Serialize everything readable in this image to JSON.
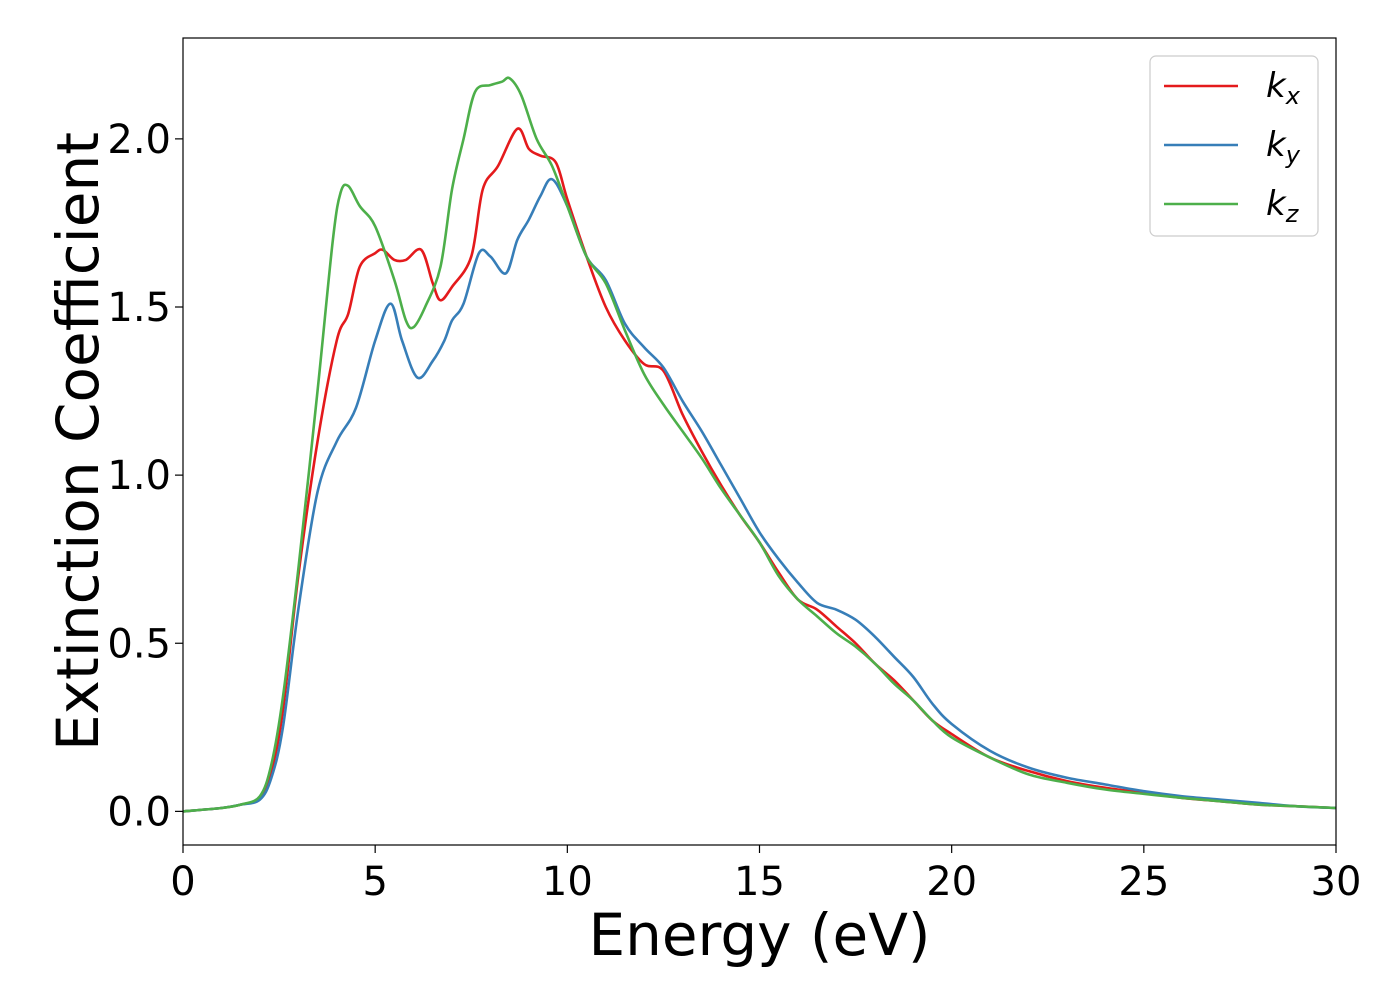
{
  "chart_data": {
    "type": "line",
    "xlabel": "Energy (eV)",
    "ylabel": "Extinction Coefficient",
    "xlim": [
      0,
      30
    ],
    "ylim": [
      -0.1,
      2.3
    ],
    "xticks": [
      0,
      5,
      10,
      15,
      20,
      25,
      30
    ],
    "yticks": [
      0.0,
      0.5,
      1.0,
      1.5,
      2.0
    ],
    "xtick_labels": [
      "0",
      "5",
      "10",
      "15",
      "20",
      "25",
      "30"
    ],
    "ytick_labels": [
      "0.0",
      "0.5",
      "1.0",
      "1.5",
      "2.0"
    ],
    "grid": false,
    "legend_position": "top-right",
    "series": [
      {
        "name": "k_x",
        "label_base": "k",
        "label_sub": "x",
        "color": "#e41a1c",
        "x": [
          0,
          1,
          1.5,
          2,
          2.3,
          2.6,
          3,
          3.5,
          4,
          4.3,
          4.6,
          5,
          5.2,
          5.5,
          5.8,
          6.2,
          6.5,
          6.7,
          7,
          7.5,
          7.8,
          8.2,
          8.7,
          9,
          9.3,
          9.7,
          10,
          10.5,
          11,
          11.5,
          12,
          12.5,
          13,
          13.5,
          14,
          14.5,
          15,
          15.5,
          16,
          16.5,
          17,
          17.5,
          18,
          18.5,
          19,
          19.5,
          20,
          21,
          22,
          23,
          24,
          25,
          26,
          27,
          28,
          29,
          30
        ],
        "y": [
          0.0,
          0.01,
          0.02,
          0.04,
          0.12,
          0.3,
          0.7,
          1.1,
          1.4,
          1.48,
          1.62,
          1.66,
          1.67,
          1.64,
          1.64,
          1.67,
          1.57,
          1.52,
          1.56,
          1.65,
          1.85,
          1.92,
          2.03,
          1.97,
          1.95,
          1.93,
          1.82,
          1.65,
          1.5,
          1.4,
          1.33,
          1.31,
          1.18,
          1.07,
          0.97,
          0.88,
          0.8,
          0.71,
          0.63,
          0.6,
          0.55,
          0.5,
          0.44,
          0.39,
          0.33,
          0.27,
          0.23,
          0.16,
          0.12,
          0.09,
          0.07,
          0.055,
          0.04,
          0.03,
          0.02,
          0.015,
          0.01
        ]
      },
      {
        "name": "k_y",
        "label_base": "k",
        "label_sub": "y",
        "color": "#377eb8",
        "x": [
          0,
          1,
          1.5,
          2,
          2.3,
          2.6,
          3,
          3.5,
          4,
          4.5,
          5,
          5.4,
          5.7,
          6.1,
          6.5,
          6.8,
          7,
          7.3,
          7.7,
          8,
          8.4,
          8.7,
          9,
          9.3,
          9.6,
          10,
          10.5,
          11,
          11.5,
          12,
          12.5,
          13,
          13.5,
          14,
          14.5,
          15,
          15.5,
          16,
          16.5,
          17,
          17.5,
          18,
          18.5,
          19,
          19.5,
          20,
          21,
          22,
          23,
          24,
          25,
          26,
          27,
          28,
          29,
          30
        ],
        "y": [
          0.0,
          0.01,
          0.02,
          0.035,
          0.1,
          0.25,
          0.6,
          0.95,
          1.1,
          1.2,
          1.4,
          1.51,
          1.4,
          1.29,
          1.34,
          1.4,
          1.46,
          1.51,
          1.66,
          1.65,
          1.6,
          1.7,
          1.76,
          1.83,
          1.88,
          1.8,
          1.65,
          1.58,
          1.45,
          1.38,
          1.32,
          1.22,
          1.13,
          1.03,
          0.93,
          0.83,
          0.75,
          0.68,
          0.62,
          0.6,
          0.57,
          0.52,
          0.46,
          0.4,
          0.32,
          0.26,
          0.18,
          0.13,
          0.1,
          0.08,
          0.06,
          0.045,
          0.035,
          0.025,
          0.015,
          0.01
        ]
      },
      {
        "name": "k_z",
        "label_base": "k",
        "label_sub": "z",
        "color": "#4daf4a",
        "x": [
          0,
          1,
          1.5,
          2,
          2.3,
          2.6,
          3,
          3.5,
          3.9,
          4.1,
          4.3,
          4.6,
          5,
          5.5,
          5.8,
          6,
          6.3,
          6.7,
          7,
          7.3,
          7.6,
          8,
          8.3,
          8.5,
          8.8,
          9.2,
          9.6,
          10,
          10.5,
          11,
          11.5,
          12,
          12.5,
          13,
          13.5,
          14,
          14.5,
          15,
          15.5,
          16,
          16.5,
          17,
          17.5,
          18,
          18.5,
          19,
          19.5,
          20,
          21,
          22,
          23,
          24,
          25,
          26,
          27,
          28,
          29,
          30
        ],
        "y": [
          0.0,
          0.01,
          0.02,
          0.045,
          0.14,
          0.34,
          0.72,
          1.25,
          1.7,
          1.84,
          1.86,
          1.8,
          1.74,
          1.58,
          1.46,
          1.44,
          1.5,
          1.62,
          1.85,
          2.0,
          2.14,
          2.16,
          2.17,
          2.18,
          2.13,
          2.0,
          1.92,
          1.8,
          1.65,
          1.57,
          1.43,
          1.3,
          1.21,
          1.13,
          1.05,
          0.96,
          0.88,
          0.8,
          0.7,
          0.63,
          0.58,
          0.53,
          0.49,
          0.44,
          0.38,
          0.33,
          0.27,
          0.22,
          0.16,
          0.11,
          0.085,
          0.065,
          0.052,
          0.04,
          0.03,
          0.02,
          0.015,
          0.01
        ]
      }
    ]
  }
}
